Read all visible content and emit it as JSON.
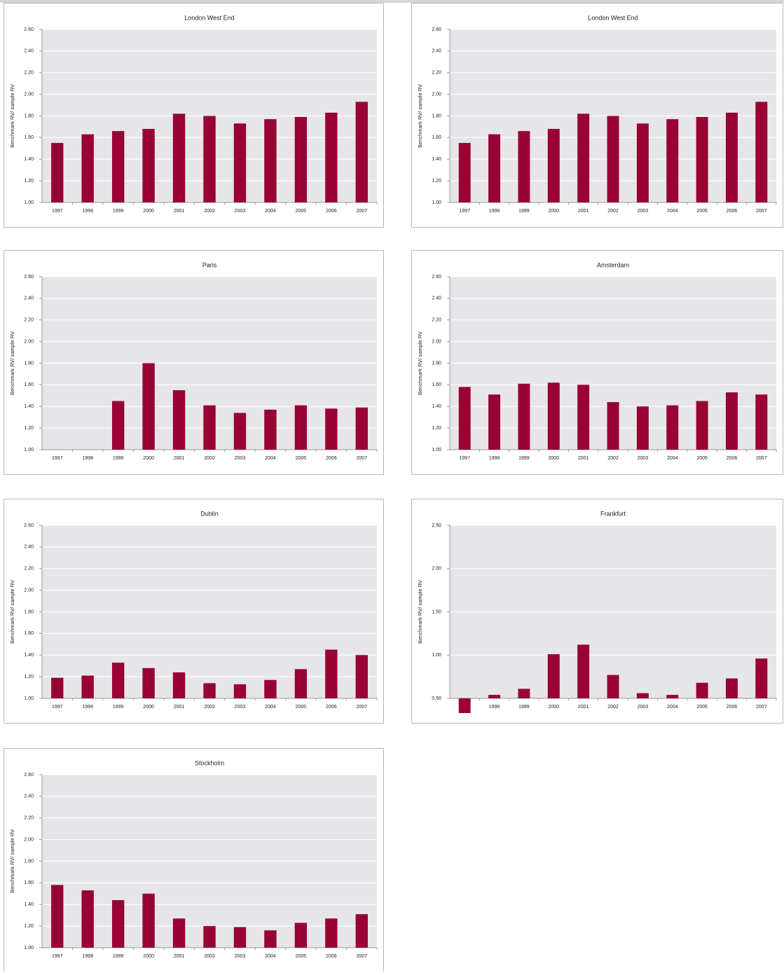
{
  "chart_data": [
    {
      "type": "bar",
      "title": "London West End",
      "ylabel": "Benchmark RV/ sample RV",
      "color": "#990033",
      "grid": true,
      "categories": [
        "1997",
        "1998",
        "1999",
        "2000",
        "2001",
        "2002",
        "2003",
        "2004",
        "2005",
        "2006",
        "2007"
      ],
      "values": [
        1.55,
        1.63,
        1.66,
        1.68,
        1.82,
        1.8,
        1.73,
        1.77,
        1.79,
        1.83,
        1.93
      ],
      "ylim": [
        1.0,
        2.6
      ],
      "yticks": [
        {
          "value": 1.0,
          "label": "1.00"
        },
        {
          "value": 1.2,
          "label": "1.20"
        },
        {
          "value": 1.4,
          "label": "1.40"
        },
        {
          "value": 1.6,
          "label": "1.60"
        },
        {
          "value": 1.8,
          "label": "1.80"
        },
        {
          "value": 2.0,
          "label": "2.00"
        },
        {
          "value": 2.2,
          "label": "2.20"
        },
        {
          "value": 2.4,
          "label": "2.40"
        },
        {
          "value": 2.6,
          "label": "2.60"
        }
      ]
    },
    {
      "type": "bar",
      "title": "London West End",
      "ylabel": "Benchmark RV/ sample RV",
      "color": "#990033",
      "grid": true,
      "categories": [
        "1997",
        "1998",
        "1999",
        "2000",
        "2001",
        "2002",
        "2003",
        "2004",
        "2005",
        "2006",
        "2007"
      ],
      "values": [
        1.55,
        1.63,
        1.66,
        1.68,
        1.82,
        1.8,
        1.73,
        1.77,
        1.79,
        1.83,
        1.93
      ],
      "ylim": [
        1.0,
        2.6
      ],
      "yticks": [
        {
          "value": 1.0,
          "label": "1.00"
        },
        {
          "value": 1.2,
          "label": "1.20"
        },
        {
          "value": 1.4,
          "label": "1.40"
        },
        {
          "value": 1.6,
          "label": "1.60"
        },
        {
          "value": 1.8,
          "label": "1.80"
        },
        {
          "value": 2.0,
          "label": "2.00"
        },
        {
          "value": 2.2,
          "label": "2.20"
        },
        {
          "value": 2.4,
          "label": "2.40"
        },
        {
          "value": 2.6,
          "label": "2.60"
        }
      ]
    },
    {
      "type": "bar",
      "title": "Paris",
      "ylabel": "Benchmark RV/ sample RV",
      "color": "#990033",
      "grid": true,
      "categories": [
        "1997",
        "1998",
        "1999",
        "2000",
        "2001",
        "2002",
        "2003",
        "2004",
        "2005",
        "2006",
        "2007"
      ],
      "values": [
        null,
        null,
        1.45,
        1.8,
        1.55,
        1.41,
        1.34,
        1.37,
        1.41,
        1.38,
        1.39
      ],
      "ylim": [
        1.0,
        2.6
      ],
      "yticks": [
        {
          "value": 1.0,
          "label": "1.00"
        },
        {
          "value": 1.2,
          "label": "1.20"
        },
        {
          "value": 1.4,
          "label": "1.40"
        },
        {
          "value": 1.6,
          "label": "1.60"
        },
        {
          "value": 1.8,
          "label": "1.80"
        },
        {
          "value": 2.0,
          "label": "2.00"
        },
        {
          "value": 2.2,
          "label": "2.20"
        },
        {
          "value": 2.4,
          "label": "2.40"
        },
        {
          "value": 2.6,
          "label": "2.60"
        }
      ]
    },
    {
      "type": "bar",
      "title": "Amsterdam",
      "ylabel": "Benchmark RV/ sample RV",
      "color": "#990033",
      "grid": true,
      "categories": [
        "1997",
        "1998",
        "1999",
        "2000",
        "2001",
        "2002",
        "2003",
        "2004",
        "2005",
        "2006",
        "2007"
      ],
      "values": [
        1.58,
        1.51,
        1.61,
        1.62,
        1.6,
        1.44,
        1.4,
        1.41,
        1.45,
        1.53,
        1.51
      ],
      "ylim": [
        1.0,
        2.6
      ],
      "yticks": [
        {
          "value": 1.0,
          "label": "1.00"
        },
        {
          "value": 1.2,
          "label": "1.20"
        },
        {
          "value": 1.4,
          "label": "1.40"
        },
        {
          "value": 1.6,
          "label": "1.60"
        },
        {
          "value": 1.8,
          "label": "1.80"
        },
        {
          "value": 2.0,
          "label": "2.00"
        },
        {
          "value": 2.2,
          "label": "2.20"
        },
        {
          "value": 2.4,
          "label": "2.40"
        },
        {
          "value": 2.6,
          "label": "2.60"
        }
      ]
    },
    {
      "type": "bar",
      "title": "Dublin",
      "ylabel": "Benchmark RV/ sample RV",
      "color": "#990033",
      "grid": true,
      "categories": [
        "1997",
        "1998",
        "1999",
        "2000",
        "2001",
        "2002",
        "2003",
        "2004",
        "2005",
        "2006",
        "2007"
      ],
      "values": [
        1.19,
        1.21,
        1.33,
        1.28,
        1.24,
        1.14,
        1.13,
        1.17,
        1.27,
        1.45,
        1.4
      ],
      "ylim": [
        1.0,
        2.6
      ],
      "yticks": [
        {
          "value": 1.0,
          "label": "1.00"
        },
        {
          "value": 1.2,
          "label": "1.20"
        },
        {
          "value": 1.4,
          "label": "1.40"
        },
        {
          "value": 1.6,
          "label": "1.60"
        },
        {
          "value": 1.8,
          "label": "1.80"
        },
        {
          "value": 2.0,
          "label": "2.00"
        },
        {
          "value": 2.2,
          "label": "2.20"
        },
        {
          "value": 2.4,
          "label": "2.40"
        },
        {
          "value": 2.6,
          "label": "2.60"
        }
      ]
    },
    {
      "type": "bar",
      "title": "Frankfurt",
      "ylabel": "Benchmark RV/ sample RV",
      "color": "#990033",
      "grid": true,
      "categories": [
        "1997",
        "1998",
        "1999",
        "2000",
        "2001",
        "2002",
        "2003",
        "2004",
        "2005",
        "2006",
        "2007"
      ],
      "values": [
        0.33,
        0.54,
        0.61,
        1.01,
        1.12,
        0.77,
        0.56,
        0.54,
        0.68,
        0.73,
        0.96
      ],
      "ylim": [
        0.5,
        2.5
      ],
      "yticks": [
        {
          "value": 0.5,
          "label": "0.50"
        },
        {
          "value": 1.0,
          "label": "1.00"
        },
        {
          "value": 1.5,
          "label": "1.50"
        },
        {
          "value": 2.0,
          "label": "2.00"
        },
        {
          "value": 2.5,
          "label": "2.50"
        }
      ]
    },
    {
      "type": "bar",
      "title": "Stockholm",
      "ylabel": "Benchmark RV/ sample RV",
      "color": "#990033",
      "grid": true,
      "categories": [
        "1997",
        "1998",
        "1999",
        "2000",
        "2001",
        "2002",
        "2003",
        "2004",
        "2005",
        "2006",
        "2007"
      ],
      "values": [
        1.58,
        1.53,
        1.44,
        1.5,
        1.27,
        1.2,
        1.19,
        1.16,
        1.23,
        1.27,
        1.31
      ],
      "ylim": [
        1.0,
        2.6
      ],
      "yticks": [
        {
          "value": 1.0,
          "label": "1.00"
        },
        {
          "value": 1.2,
          "label": "1.20"
        },
        {
          "value": 1.4,
          "label": "1.40"
        },
        {
          "value": 1.6,
          "label": "1.60"
        },
        {
          "value": 1.8,
          "label": "1.80"
        },
        {
          "value": 2.0,
          "label": "2.00"
        },
        {
          "value": 2.2,
          "label": "2.20"
        },
        {
          "value": 2.4,
          "label": "2.40"
        },
        {
          "value": 2.6,
          "label": "2.60"
        }
      ]
    }
  ]
}
